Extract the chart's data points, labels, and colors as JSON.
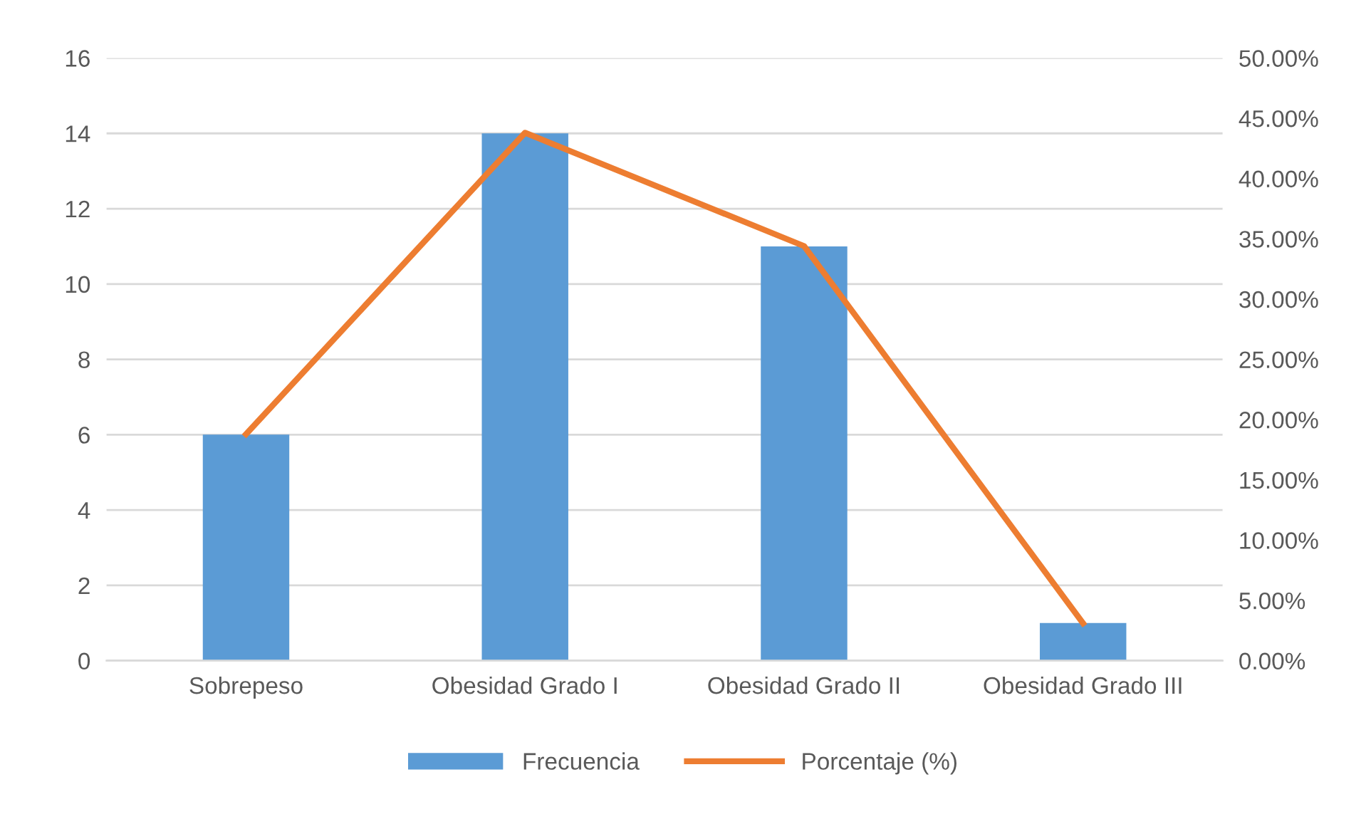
{
  "chart_data": {
    "type": "bar",
    "categories": [
      "Sobrepeso",
      "Obesidad Grado I",
      "Obesidad Grado II",
      "Obesidad Grado III"
    ],
    "series": [
      {
        "name": "Frecuencia",
        "color": "#5b9bd5",
        "values": [
          6,
          14,
          11,
          1
        ]
      },
      {
        "name": "Porcentaje (%)",
        "type": "line",
        "axis": "y2",
        "color": "#ed7d31",
        "marker": "none",
        "line_style": "solid",
        "values": [
          18.8,
          43.8,
          34.4,
          3.1
        ]
      }
    ],
    "ylim": [
      0,
      16
    ],
    "yticks": [
      0,
      2,
      4,
      6,
      8,
      10,
      12,
      14,
      16
    ],
    "y2lim": [
      0,
      50
    ],
    "y2ticks": [
      {
        "value": 0,
        "label": "0.00%"
      },
      {
        "value": 5,
        "label": "5.00%"
      },
      {
        "value": 10,
        "label": "10.00%"
      },
      {
        "value": 15,
        "label": "15.00%"
      },
      {
        "value": 20,
        "label": "20.00%"
      },
      {
        "value": 25,
        "label": "25.00%"
      },
      {
        "value": 30,
        "label": "30.00%"
      },
      {
        "value": 35,
        "label": "35.00%"
      },
      {
        "value": 40,
        "label": "40.00%"
      },
      {
        "value": 45,
        "label": "45.00%"
      },
      {
        "value": 50,
        "label": "50.00%"
      }
    ],
    "grid": "y",
    "legend": "bottom"
  }
}
